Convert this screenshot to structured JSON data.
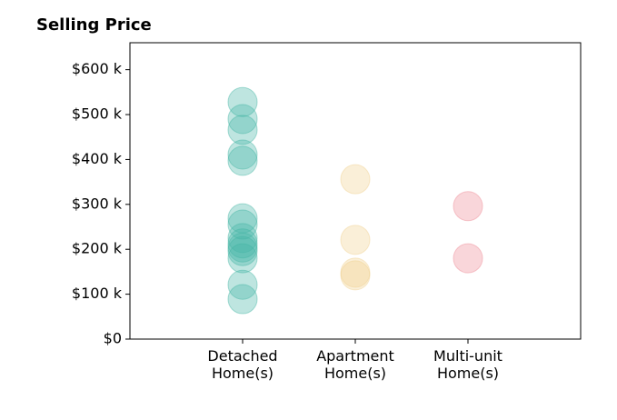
{
  "chart_data": {
    "type": "strip",
    "title": "Selling Price",
    "categories": [
      "Detached\nHome(s)",
      "Apartment\nHome(s)",
      "Multi-unit\nHome(s)"
    ],
    "colors": [
      "#45b5a5",
      "#f0d090",
      "#ee8a95"
    ],
    "values": [
      [
        528000,
        490000,
        466000,
        411000,
        397000,
        269000,
        255000,
        225000,
        213000,
        204000,
        196000,
        180000,
        121000,
        89000
      ],
      [
        356000,
        221000,
        148000,
        142000
      ],
      [
        296000,
        180000
      ]
    ],
    "ylim": [
      0,
      660000
    ],
    "yticks": [
      {
        "value": 0,
        "label": "$0"
      },
      {
        "value": 100000,
        "label": "$100 k"
      },
      {
        "value": 200000,
        "label": "$200 k"
      },
      {
        "value": 300000,
        "label": "$300 k"
      },
      {
        "value": 400000,
        "label": "$400 k"
      },
      {
        "value": 500000,
        "label": "$500 k"
      },
      {
        "value": 600000,
        "label": "$600 k"
      }
    ]
  }
}
